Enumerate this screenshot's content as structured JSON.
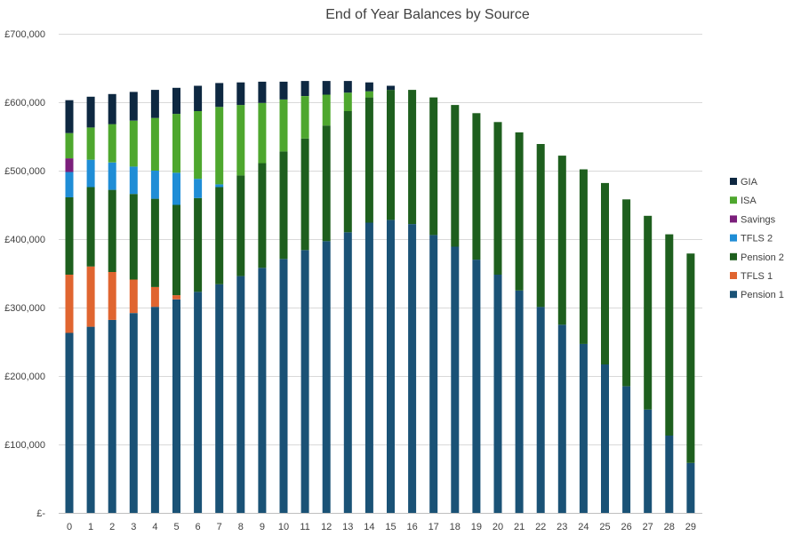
{
  "chart_data": {
    "type": "bar",
    "stacked": true,
    "title": "End of Year Balances by Source",
    "xlabel": "",
    "ylabel": "",
    "ylim": [
      0,
      700000
    ],
    "y_ticks": [
      0,
      100000,
      200000,
      300000,
      400000,
      500000,
      600000,
      700000
    ],
    "y_tick_labels": [
      "£-",
      "£100,000",
      "£200,000",
      "£300,000",
      "£400,000",
      "£500,000",
      "£600,000",
      "£700,000"
    ],
    "grid": true,
    "legend_position": "right",
    "categories": [
      "0",
      "1",
      "2",
      "3",
      "4",
      "5",
      "6",
      "7",
      "8",
      "9",
      "10",
      "11",
      "12",
      "13",
      "14",
      "15",
      "16",
      "17",
      "18",
      "19",
      "20",
      "21",
      "22",
      "23",
      "24",
      "25",
      "26",
      "27",
      "28",
      "29"
    ],
    "series": [
      {
        "name": "Pension 1",
        "color": "#1a5276",
        "values": [
          263000,
          272000,
          282000,
          292000,
          301000,
          312000,
          323000,
          334000,
          346000,
          358000,
          371000,
          384000,
          397000,
          410000,
          424000,
          428000,
          422000,
          406000,
          389000,
          370000,
          348000,
          325000,
          301000,
          275000,
          247000,
          217000,
          185000,
          151000,
          113000,
          73000
        ]
      },
      {
        "name": "TFLS 1",
        "color": "#e06530",
        "values": [
          85000,
          88000,
          70000,
          49000,
          29000,
          6000,
          0,
          0,
          0,
          0,
          0,
          0,
          0,
          0,
          0,
          0,
          0,
          0,
          0,
          0,
          0,
          0,
          0,
          0,
          0,
          0,
          0,
          0,
          0,
          0
        ]
      },
      {
        "name": "Pension 2",
        "color": "#1e5f1e",
        "values": [
          113000,
          116000,
          120000,
          125000,
          129000,
          132000,
          137000,
          142000,
          147000,
          153000,
          157000,
          163000,
          169000,
          177000,
          183000,
          190000,
          196000,
          201000,
          207000,
          214000,
          223000,
          231000,
          238000,
          247000,
          255000,
          265000,
          273000,
          283000,
          294000,
          306000
        ]
      },
      {
        "name": "TFLS 2",
        "color": "#1f8dd6",
        "values": [
          37000,
          40000,
          40000,
          40000,
          41000,
          47000,
          28000,
          4000,
          0,
          0,
          0,
          0,
          0,
          0,
          0,
          0,
          0,
          0,
          0,
          0,
          0,
          0,
          0,
          0,
          0,
          0,
          0,
          0,
          0,
          0
        ]
      },
      {
        "name": "Savings",
        "color": "#7b1f7b",
        "values": [
          20000,
          0,
          0,
          0,
          0,
          0,
          0,
          0,
          0,
          0,
          0,
          0,
          0,
          0,
          0,
          0,
          0,
          0,
          0,
          0,
          0,
          0,
          0,
          0,
          0,
          0,
          0,
          0,
          0,
          0
        ]
      },
      {
        "name": "ISA",
        "color": "#4ea72e",
        "values": [
          37000,
          47000,
          56000,
          67000,
          77000,
          86000,
          99000,
          113000,
          103000,
          88000,
          76000,
          62000,
          45000,
          27000,
          9000,
          0,
          0,
          0,
          0,
          0,
          0,
          0,
          0,
          0,
          0,
          0,
          0,
          0,
          0,
          0
        ]
      },
      {
        "name": "GIA",
        "color": "#0e2841",
        "values": [
          48000,
          45000,
          44000,
          42000,
          41000,
          38000,
          37000,
          35000,
          33000,
          31000,
          26000,
          22000,
          20000,
          17000,
          13000,
          6000,
          0,
          0,
          0,
          0,
          0,
          0,
          0,
          0,
          0,
          0,
          0,
          0,
          0,
          0
        ]
      }
    ]
  }
}
